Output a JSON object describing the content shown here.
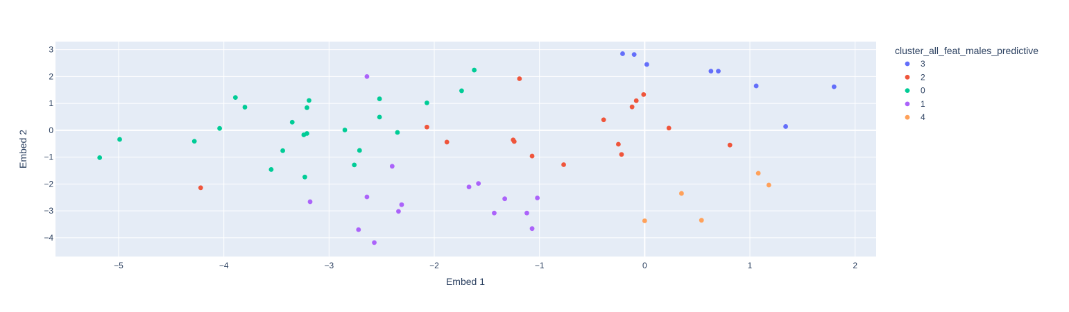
{
  "chart_data": {
    "type": "scatter",
    "xlabel": "Embed 1",
    "ylabel": "Embed 2",
    "xlim": [
      -5.6,
      2.2
    ],
    "ylim": [
      -4.7,
      3.3
    ],
    "x_ticks": [
      -5,
      -4,
      -3,
      -2,
      -1,
      0,
      1,
      2
    ],
    "y_ticks": [
      -4,
      -3,
      -2,
      -1,
      0,
      1,
      2,
      3
    ],
    "x_tick_labels": [
      "−5",
      "−4",
      "−3",
      "−2",
      "−1",
      "0",
      "1",
      "2"
    ],
    "y_tick_labels": [
      "−4",
      "−3",
      "−2",
      "−1",
      "0",
      "1",
      "2",
      "3"
    ],
    "grid": true,
    "legend_title": "cluster_all_feat_males_predictive",
    "legend_position": "top-right",
    "series": [
      {
        "name": "3",
        "color": "#636efa",
        "points": [
          [
            -0.21,
            2.85
          ],
          [
            -0.1,
            2.82
          ],
          [
            0.02,
            2.45
          ],
          [
            0.63,
            2.2
          ],
          [
            0.7,
            2.2
          ],
          [
            1.06,
            1.65
          ],
          [
            1.8,
            1.62
          ],
          [
            1.34,
            0.14
          ]
        ]
      },
      {
        "name": "2",
        "color": "#ef553b",
        "points": [
          [
            -1.19,
            1.92
          ],
          [
            -0.01,
            1.33
          ],
          [
            -0.08,
            1.1
          ],
          [
            -0.12,
            0.87
          ],
          [
            -0.39,
            0.39
          ],
          [
            0.23,
            0.08
          ],
          [
            -2.07,
            0.12
          ],
          [
            -1.88,
            -0.44
          ],
          [
            -1.25,
            -0.36
          ],
          [
            -1.24,
            -0.42
          ],
          [
            -0.25,
            -0.52
          ],
          [
            -0.22,
            -0.9
          ],
          [
            0.81,
            -0.55
          ],
          [
            -1.07,
            -0.96
          ],
          [
            -0.77,
            -1.28
          ],
          [
            -4.22,
            -2.14
          ]
        ]
      },
      {
        "name": "0",
        "color": "#00cc96",
        "points": [
          [
            -1.62,
            2.24
          ],
          [
            -1.74,
            1.47
          ],
          [
            -3.89,
            1.22
          ],
          [
            -2.52,
            1.17
          ],
          [
            -3.19,
            1.11
          ],
          [
            -2.07,
            1.02
          ],
          [
            -3.8,
            0.86
          ],
          [
            -3.21,
            0.84
          ],
          [
            -2.52,
            0.49
          ],
          [
            -3.35,
            0.3
          ],
          [
            -4.04,
            0.07
          ],
          [
            -2.85,
            0.01
          ],
          [
            -2.35,
            -0.08
          ],
          [
            -3.21,
            -0.12
          ],
          [
            -3.24,
            -0.17
          ],
          [
            -4.99,
            -0.34
          ],
          [
            -4.28,
            -0.41
          ],
          [
            -3.44,
            -0.76
          ],
          [
            -2.71,
            -0.75
          ],
          [
            -5.18,
            -1.02
          ],
          [
            -2.76,
            -1.29
          ],
          [
            -3.55,
            -1.46
          ],
          [
            -3.23,
            -1.74
          ]
        ]
      },
      {
        "name": "1",
        "color": "#ab63fa",
        "points": [
          [
            -2.64,
            2.0
          ],
          [
            -2.4,
            -1.34
          ],
          [
            -1.58,
            -1.98
          ],
          [
            -1.67,
            -2.11
          ],
          [
            -2.64,
            -2.48
          ],
          [
            -1.33,
            -2.55
          ],
          [
            -1.02,
            -2.52
          ],
          [
            -3.18,
            -2.66
          ],
          [
            -2.31,
            -2.77
          ],
          [
            -2.34,
            -3.02
          ],
          [
            -1.43,
            -3.08
          ],
          [
            -1.12,
            -3.08
          ],
          [
            -2.72,
            -3.7
          ],
          [
            -1.07,
            -3.66
          ],
          [
            -2.57,
            -4.18
          ]
        ]
      },
      {
        "name": "4",
        "color": "#ffa15a",
        "points": [
          [
            1.08,
            -1.6
          ],
          [
            1.18,
            -2.04
          ],
          [
            0.35,
            -2.35
          ],
          [
            0.54,
            -3.35
          ],
          [
            0.0,
            -3.37
          ]
        ]
      }
    ]
  }
}
